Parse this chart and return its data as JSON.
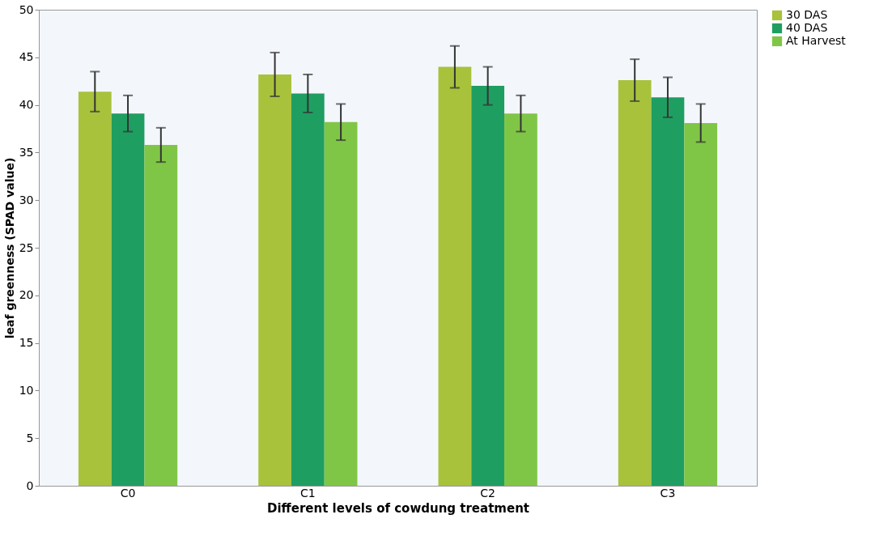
{
  "chart_data": {
    "type": "bar",
    "xlabel": "Different levels of cowdung  treatment",
    "ylabel": "leaf greenness (SPAD value)",
    "categories": [
      "C0",
      "C1",
      "C2",
      "C3"
    ],
    "series": [
      {
        "name": "30 DAS",
        "color": "#a8c23c",
        "values": [
          41.4,
          43.2,
          44.0,
          42.6
        ],
        "errors": [
          2.1,
          2.3,
          2.2,
          2.2
        ]
      },
      {
        "name": "40 DAS",
        "color": "#1f9e62",
        "values": [
          39.1,
          41.2,
          42.0,
          40.8
        ],
        "errors": [
          1.9,
          2.0,
          2.0,
          2.1
        ]
      },
      {
        "name": "At Harvest",
        "color": "#80c646",
        "values": [
          35.8,
          38.2,
          39.1,
          38.1
        ],
        "errors": [
          1.8,
          1.9,
          1.9,
          2.0
        ]
      }
    ],
    "ylim": [
      0,
      50
    ],
    "yticks": [
      0,
      5,
      10,
      15,
      20,
      25,
      30,
      35,
      40,
      45,
      50
    ],
    "grid": false,
    "legend": "right"
  }
}
